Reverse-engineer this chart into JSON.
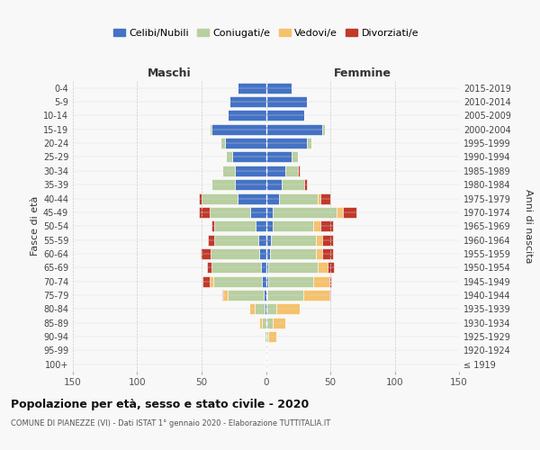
{
  "age_groups": [
    "100+",
    "95-99",
    "90-94",
    "85-89",
    "80-84",
    "75-79",
    "70-74",
    "65-69",
    "60-64",
    "55-59",
    "50-54",
    "45-49",
    "40-44",
    "35-39",
    "30-34",
    "25-29",
    "20-24",
    "15-19",
    "10-14",
    "5-9",
    "0-4"
  ],
  "birth_years": [
    "≤ 1919",
    "1920-1924",
    "1925-1929",
    "1930-1934",
    "1935-1939",
    "1940-1944",
    "1945-1949",
    "1950-1954",
    "1955-1959",
    "1960-1964",
    "1965-1969",
    "1970-1974",
    "1975-1979",
    "1980-1984",
    "1985-1989",
    "1990-1994",
    "1995-1999",
    "2000-2004",
    "2005-2009",
    "2010-2014",
    "2015-2019"
  ],
  "maschi": {
    "celibi": [
      0,
      0,
      0,
      0,
      1,
      2,
      3,
      4,
      5,
      6,
      8,
      12,
      22,
      24,
      24,
      26,
      32,
      42,
      30,
      28,
      22
    ],
    "coniugati": [
      0,
      0,
      1,
      3,
      8,
      28,
      38,
      38,
      38,
      34,
      32,
      32,
      28,
      18,
      10,
      5,
      3,
      2,
      0,
      0,
      0
    ],
    "vedovi": [
      0,
      0,
      0,
      2,
      4,
      3,
      3,
      0,
      0,
      0,
      0,
      0,
      0,
      0,
      0,
      0,
      0,
      0,
      0,
      0,
      0
    ],
    "divorziati": [
      0,
      0,
      0,
      0,
      0,
      1,
      5,
      4,
      8,
      5,
      2,
      8,
      2,
      0,
      0,
      0,
      0,
      0,
      0,
      0,
      0
    ]
  },
  "femmine": {
    "nubili": [
      0,
      0,
      0,
      0,
      0,
      1,
      2,
      2,
      3,
      4,
      5,
      5,
      10,
      12,
      15,
      20,
      32,
      44,
      30,
      32,
      20
    ],
    "coniugate": [
      0,
      0,
      2,
      5,
      8,
      28,
      35,
      38,
      36,
      35,
      32,
      50,
      30,
      18,
      10,
      5,
      3,
      2,
      0,
      0,
      0
    ],
    "vedove": [
      1,
      1,
      6,
      10,
      18,
      20,
      12,
      8,
      5,
      5,
      5,
      5,
      2,
      0,
      0,
      0,
      0,
      0,
      0,
      0,
      0
    ],
    "divorziate": [
      0,
      0,
      0,
      0,
      0,
      1,
      2,
      5,
      8,
      8,
      10,
      10,
      8,
      2,
      1,
      0,
      0,
      0,
      0,
      0,
      0
    ]
  },
  "colors": {
    "celibi": "#4472c4",
    "coniugati": "#b8cfa0",
    "vedovi": "#f5c26b",
    "divorziati": "#c0392b"
  },
  "legend_labels": [
    "Celibi/Nubili",
    "Coniugati/e",
    "Vedovi/e",
    "Divorziati/e"
  ],
  "title": "Popolazione per età, sesso e stato civile - 2020",
  "subtitle": "COMUNE DI PIANEZZE (VI) - Dati ISTAT 1° gennaio 2020 - Elaborazione TUTTITALIA.IT",
  "label_maschi": "Maschi",
  "label_femmine": "Femmine",
  "ylabel_left": "Fasce di età",
  "ylabel_right": "Anni di nascita",
  "xlim": 150,
  "bg_color": "#f8f8f8"
}
